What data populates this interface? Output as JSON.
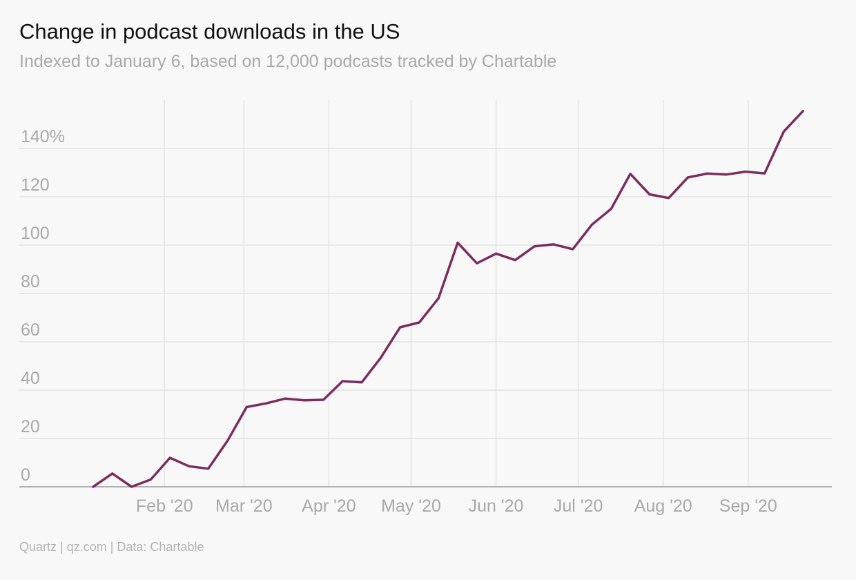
{
  "header": {
    "title": "Change in podcast downloads in the US",
    "subtitle": "Indexed to January 6, based on 12,000 podcasts tracked by Chartable"
  },
  "footer": {
    "source": "Quartz | qz.com | Data: Chartable"
  },
  "colors": {
    "line": "#7b2d5e",
    "grid": "#e3e3e3",
    "axis": "#999999",
    "text_muted": "#a9a9a9",
    "background": "#f8f8f8"
  },
  "chart_data": {
    "type": "line",
    "title": "Change in podcast downloads in the US",
    "subtitle": "Indexed to January 6, based on 12,000 podcasts tracked by Chartable",
    "xlabel": "",
    "ylabel": "",
    "grid": true,
    "legend": "none",
    "x_range": [
      "2020-01-06",
      "2020-09-27"
    ],
    "ylim": [
      0,
      160
    ],
    "y_ticks": [
      0,
      20,
      40,
      60,
      80,
      100,
      120,
      140
    ],
    "y_tick_labels": [
      "0",
      "20",
      "40",
      "60",
      "80",
      "100",
      "120",
      "140%"
    ],
    "x_ticks": [
      "2020-02-01",
      "2020-03-01",
      "2020-04-01",
      "2020-05-01",
      "2020-06-01",
      "2020-07-01",
      "2020-08-01",
      "2020-09-01"
    ],
    "x_tick_labels": [
      "Feb '20",
      "Mar '20",
      "Apr '20",
      "May '20",
      "Jun '20",
      "Jul '20",
      "Aug '20",
      "Sep '20"
    ],
    "series": [
      {
        "x": [
          "2020-01-06",
          "2020-01-13",
          "2020-01-20",
          "2020-01-27",
          "2020-02-03",
          "2020-02-10",
          "2020-02-17",
          "2020-02-24",
          "2020-03-02",
          "2020-03-09",
          "2020-03-16",
          "2020-03-23",
          "2020-03-30",
          "2020-04-06",
          "2020-04-13",
          "2020-04-20",
          "2020-04-27",
          "2020-05-04",
          "2020-05-11",
          "2020-05-18",
          "2020-05-25",
          "2020-06-01",
          "2020-06-08",
          "2020-06-15",
          "2020-06-22",
          "2020-06-29",
          "2020-07-06",
          "2020-07-13",
          "2020-07-20",
          "2020-07-27",
          "2020-08-03",
          "2020-08-10",
          "2020-08-17",
          "2020-08-24",
          "2020-08-31",
          "2020-09-07",
          "2020-09-14",
          "2020-09-21"
        ],
        "values": [
          0,
          5.5,
          0,
          3,
          12,
          8.5,
          7.5,
          19,
          33,
          34.5,
          36.5,
          35.8,
          36,
          43.7,
          43.2,
          53.5,
          66,
          68,
          78,
          101,
          92.5,
          96.5,
          93.8,
          99.5,
          100.3,
          98.3,
          108.5,
          115,
          129.5,
          121,
          119.5,
          128,
          129.6,
          129.2,
          130.4,
          129.7,
          147,
          155.5
        ]
      }
    ]
  }
}
